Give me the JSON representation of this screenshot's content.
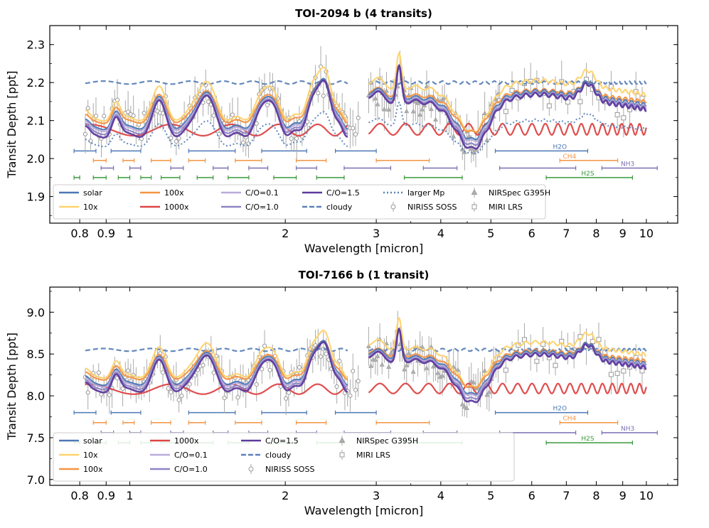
{
  "colors": {
    "solar": "#4c78b5",
    "x10": "#ffd36e",
    "x100": "#f59442",
    "x1000": "#de4545",
    "co01": "#b9acd9",
    "co10": "#8f83c6",
    "co15": "#5e3a9e",
    "cloudy": "#5b82b8",
    "largerMp": "#5b82b8",
    "data": "#999999",
    "H2O": "#4c78b5",
    "CH4": "#f59442",
    "NH3": "#7b6fb4",
    "H2S": "#3a9a3a"
  },
  "chart_data": [
    {
      "type": "line",
      "title": "TOI-2094 b (4 transits)",
      "xlabel": "Wavelength [micron]",
      "ylabel": "Transit Depth [ppt]",
      "xscale": "log",
      "xlim": [
        0.7,
        11.5
      ],
      "ylim": [
        1.83,
        2.35
      ],
      "xticks": [
        0.8,
        0.9,
        1,
        2,
        3,
        4,
        5,
        6,
        7,
        8,
        9,
        10
      ],
      "xticklabels": [
        "0.8",
        "0.9",
        "1",
        "2",
        "3",
        "4",
        "5",
        "6",
        "7",
        "8",
        "9",
        "10"
      ],
      "yticks": [
        1.9,
        2.0,
        2.1,
        2.2,
        2.3
      ],
      "yticklabels": [
        "1.9",
        "2.0",
        "2.1",
        "2.2",
        "2.3"
      ],
      "baseline": 2.12,
      "amp": 0.1,
      "cloudy": 2.2,
      "x1000": 2.075,
      "dataScatter": 0.06,
      "band_y": {
        "H2O": 2.02,
        "CH4": 1.995,
        "NH3": 1.975,
        "H2S": 1.95
      },
      "legend_cols": 6,
      "legend": [
        {
          "key": "solar",
          "label": "solar",
          "style": "line"
        },
        {
          "key": "x10",
          "label": "10x",
          "style": "line"
        },
        {
          "key": "x100",
          "label": "100x",
          "style": "line"
        },
        {
          "key": "x1000",
          "label": "1000x",
          "style": "line"
        },
        {
          "key": "co01",
          "label": "C/O=0.1",
          "style": "line"
        },
        {
          "key": "co10",
          "label": "C/O=1.0",
          "style": "line"
        },
        {
          "key": "co15",
          "label": "C/O=1.5",
          "style": "line"
        },
        {
          "key": "cloudy",
          "label": "cloudy",
          "style": "dash"
        },
        {
          "key": "largerMp",
          "label": "larger Mp",
          "style": "dot"
        },
        {
          "key": "data",
          "label": "NIRISS SOSS",
          "style": "circle"
        },
        {
          "key": "data",
          "label": "NIRSpec G395H",
          "style": "triangle"
        },
        {
          "key": "data",
          "label": "MIRI LRS",
          "style": "square"
        }
      ]
    },
    {
      "type": "line",
      "title": "TOI-7166 b (1 transit)",
      "xlabel": "Wavelength [micron]",
      "ylabel": "Transit Depth [ppt]",
      "xscale": "log",
      "xlim": [
        0.7,
        11.5
      ],
      "ylim": [
        6.93,
        9.3
      ],
      "xticks": [
        0.8,
        0.9,
        1,
        2,
        3,
        4,
        5,
        6,
        7,
        8,
        9,
        10
      ],
      "xticklabels": [
        "0.8",
        "0.9",
        "1",
        "2",
        "3",
        "4",
        "5",
        "6",
        "7",
        "8",
        "9",
        "10"
      ],
      "yticks": [
        7.0,
        7.5,
        8.0,
        8.5,
        9.0
      ],
      "yticklabels": [
        "7.0",
        "7.5",
        "8.0",
        "8.5",
        "9.0"
      ],
      "baseline": 8.3,
      "amp": 0.4,
      "cloudy": 8.55,
      "x1000": 8.08,
      "dataScatter": 0.25,
      "band_y": {
        "H2O": 7.8,
        "CH4": 7.68,
        "NH3": 7.56,
        "H2S": 7.44
      },
      "legend_cols": 5,
      "legend": [
        {
          "key": "solar",
          "label": "solar",
          "style": "line"
        },
        {
          "key": "x10",
          "label": "10x",
          "style": "line"
        },
        {
          "key": "x100",
          "label": "100x",
          "style": "line"
        },
        {
          "key": "x1000",
          "label": "1000x",
          "style": "line"
        },
        {
          "key": "co01",
          "label": "C/O=0.1",
          "style": "line"
        },
        {
          "key": "co10",
          "label": "C/O=1.0",
          "style": "line"
        },
        {
          "key": "co15",
          "label": "C/O=1.5",
          "style": "line"
        },
        {
          "key": "cloudy",
          "label": "cloudy",
          "style": "dash"
        },
        {
          "key": "data",
          "label": "NIRISS SOSS",
          "style": "circle"
        },
        {
          "key": "data",
          "label": "NIRSpec G395H",
          "style": "triangle"
        },
        {
          "key": "data",
          "label": "MIRI LRS",
          "style": "square"
        }
      ]
    }
  ],
  "bands": {
    "H2O": {
      "label": "H2O",
      "label_x": 6.8,
      "ranges": [
        [
          0.78,
          0.86
        ],
        [
          0.92,
          1.05
        ],
        [
          1.3,
          1.6
        ],
        [
          1.8,
          2.2
        ],
        [
          2.5,
          3.0
        ],
        [
          5.1,
          7.7
        ]
      ]
    },
    "CH4": {
      "label": "CH4",
      "label_x": 7.1,
      "ranges": [
        [
          0.85,
          0.9
        ],
        [
          0.97,
          1.02
        ],
        [
          1.1,
          1.2
        ],
        [
          1.3,
          1.4
        ],
        [
          1.6,
          1.8
        ],
        [
          2.1,
          2.4
        ],
        [
          3.0,
          3.8
        ],
        [
          6.8,
          8.8
        ]
      ]
    },
    "NH3": {
      "label": "NH3",
      "label_x": 9.2,
      "ranges": [
        [
          0.88,
          0.93
        ],
        [
          1.0,
          1.05
        ],
        [
          1.2,
          1.27
        ],
        [
          1.45,
          1.55
        ],
        [
          1.7,
          1.85
        ],
        [
          2.1,
          2.3
        ],
        [
          2.6,
          3.2
        ],
        [
          3.7,
          4.3
        ],
        [
          5.2,
          7.3
        ],
        [
          8.2,
          10.5
        ]
      ]
    },
    "H2S": {
      "label": "H2S",
      "label_x": 7.7,
      "ranges": [
        [
          0.78,
          0.8
        ],
        [
          0.85,
          0.9
        ],
        [
          0.95,
          1.0
        ],
        [
          1.05,
          1.1
        ],
        [
          1.15,
          1.25
        ],
        [
          1.35,
          1.45
        ],
        [
          1.55,
          1.7
        ],
        [
          1.9,
          2.1
        ],
        [
          2.3,
          2.6
        ],
        [
          3.4,
          4.4
        ],
        [
          6.4,
          9.4
        ]
      ]
    }
  }
}
